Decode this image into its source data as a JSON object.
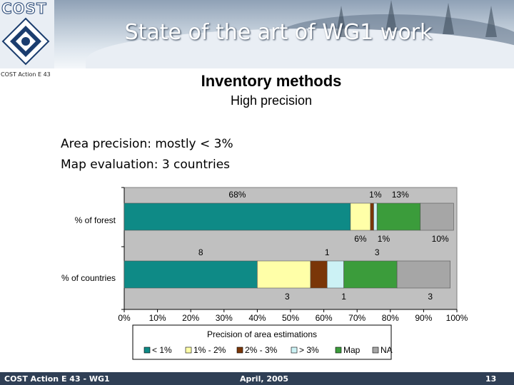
{
  "slide": {
    "title": "State of the art of WG1 work",
    "logo_text": "COST",
    "logo_caption": "COST Action E 43",
    "subtitle": "Inventory methods",
    "subsubtitle": "High precision",
    "lines": [
      "Area precision: mostly < 3%",
      "Map evaluation: 3 countries"
    ],
    "footer_left": "COST Action E 43 - WG1",
    "footer_center": "April, 2005",
    "footer_page": "13"
  },
  "chart_data": {
    "type": "bar",
    "orientation": "horizontal",
    "stacked": "percent",
    "xlabel": "Precision of area estimations",
    "xlim": [
      0,
      100
    ],
    "xticks": [
      "0%",
      "10%",
      "20%",
      "30%",
      "40%",
      "50%",
      "60%",
      "70%",
      "80%",
      "90%",
      "100%"
    ],
    "categories": [
      "% of forest",
      "% of countries"
    ],
    "series": [
      {
        "name": "< 1%",
        "color": "#0e8a86",
        "values": [
          68,
          40
        ]
      },
      {
        "name": "1% - 2%",
        "color": "#ffffa8",
        "values": [
          6,
          16
        ]
      },
      {
        "name": "2% - 3%",
        "color": "#7a3608",
        "values": [
          1,
          5
        ]
      },
      {
        "name": "> 3%",
        "color": "#ccf2f5",
        "values": [
          1,
          5
        ]
      },
      {
        "name": "Map",
        "color": "#3b9c3b",
        "values": [
          13,
          16
        ]
      },
      {
        "name": "NA",
        "color": "#a6a6a6",
        "values": [
          10,
          16
        ]
      }
    ],
    "annotations": [
      {
        "text": "68%",
        "x": 34,
        "row": 0,
        "pos": "above"
      },
      {
        "text": "1%",
        "x": 75.5,
        "row": 0,
        "pos": "above"
      },
      {
        "text": "13%",
        "x": 83,
        "row": 0,
        "pos": "above"
      },
      {
        "text": "6%",
        "x": 71,
        "row": 0,
        "pos": "below"
      },
      {
        "text": "1%",
        "x": 78,
        "row": 0,
        "pos": "below"
      },
      {
        "text": "10%",
        "x": 95,
        "row": 0,
        "pos": "below"
      },
      {
        "text": "8",
        "x": 23,
        "row": 1,
        "pos": "above"
      },
      {
        "text": "1",
        "x": 61,
        "row": 1,
        "pos": "above"
      },
      {
        "text": "3",
        "x": 76,
        "row": 1,
        "pos": "above"
      },
      {
        "text": "3",
        "x": 49,
        "row": 1,
        "pos": "below"
      },
      {
        "text": "1",
        "x": 66,
        "row": 1,
        "pos": "below"
      },
      {
        "text": "3",
        "x": 92,
        "row": 1,
        "pos": "below"
      }
    ],
    "legend_position": "bottom",
    "grid": false
  }
}
